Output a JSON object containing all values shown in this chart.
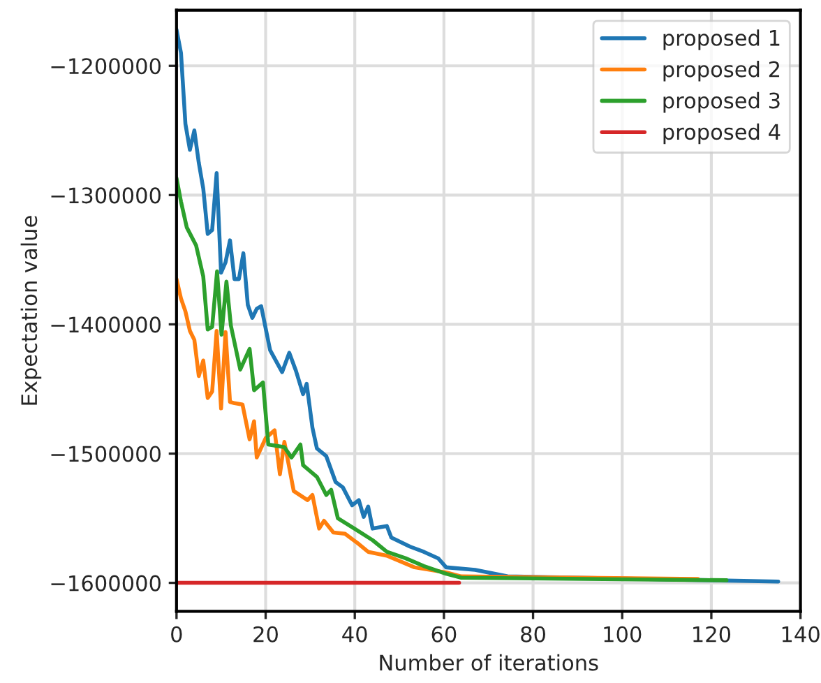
{
  "chart_data": {
    "type": "line",
    "xlabel": "Number of iterations",
    "ylabel": "Expectation value",
    "xlim": [
      0,
      140
    ],
    "ylim": [
      -1622000,
      -1157000
    ],
    "xticks": [
      0,
      20,
      40,
      60,
      80,
      100,
      120,
      140
    ],
    "yticks": [
      {
        "value": -1600000,
        "label": "−1600000"
      },
      {
        "value": -1500000,
        "label": "−1500000"
      },
      {
        "value": -1400000,
        "label": "−1400000"
      },
      {
        "value": -1300000,
        "label": "−1300000"
      },
      {
        "value": -1200000,
        "label": "−1200000"
      }
    ],
    "grid": true,
    "legend": "top right",
    "line_style": "solid",
    "series": [
      {
        "name": "proposed 1",
        "color": "#1f77b4",
        "x": [
          0,
          1,
          2,
          3,
          4,
          5,
          6,
          7,
          8,
          9,
          10,
          11,
          12,
          13,
          14,
          15,
          16,
          17,
          18,
          19,
          21,
          23.7,
          25.3,
          26.8,
          28.4,
          29.2,
          30.5,
          31.5,
          33.6,
          35.7,
          37.3,
          39.4,
          40.9,
          42,
          43,
          44,
          47.2,
          48.2,
          52.4,
          55.5,
          58.7,
          60.5,
          67,
          74.3,
          135
        ],
        "values": [
          -1172000,
          -1190000,
          -1245000,
          -1265000,
          -1250000,
          -1275000,
          -1295000,
          -1330000,
          -1327000,
          -1283000,
          -1360000,
          -1352000,
          -1335000,
          -1365000,
          -1365000,
          -1345000,
          -1385000,
          -1395000,
          -1388000,
          -1386000,
          -1420000,
          -1437000,
          -1422000,
          -1436000,
          -1454000,
          -1446000,
          -1480000,
          -1496000,
          -1502000,
          -1522000,
          -1526000,
          -1540000,
          -1536000,
          -1549000,
          -1541000,
          -1558000,
          -1556000,
          -1565000,
          -1572000,
          -1576000,
          -1581000,
          -1588000,
          -1590000,
          -1595000,
          -1599000
        ]
      },
      {
        "name": "proposed 2",
        "color": "#ff7f0e",
        "x": [
          0,
          1,
          2,
          3,
          4,
          5,
          6,
          7,
          8,
          9,
          10,
          11,
          12,
          13,
          14.8,
          16.4,
          17.4,
          18,
          20,
          22,
          23.2,
          24.2,
          26.3,
          29.4,
          30.5,
          32,
          33.1,
          35.2,
          37.8,
          40.9,
          43,
          47.2,
          53.4,
          60.5,
          63.9,
          117
        ],
        "values": [
          -1365000,
          -1380000,
          -1390000,
          -1405000,
          -1412000,
          -1440000,
          -1428000,
          -1457000,
          -1452000,
          -1405000,
          -1465000,
          -1406000,
          -1460000,
          -1461000,
          -1462000,
          -1489000,
          -1475000,
          -1503000,
          -1488000,
          -1482000,
          -1516000,
          -1491000,
          -1529000,
          -1536000,
          -1532000,
          -1558000,
          -1552000,
          -1561000,
          -1562000,
          -1570000,
          -1576000,
          -1579000,
          -1588000,
          -1592000,
          -1595000,
          -1597000
        ]
      },
      {
        "name": "proposed 3",
        "color": "#2ca02c",
        "x": [
          0,
          1,
          2.3,
          4.4,
          6,
          7,
          8,
          9.1,
          10.1,
          11.2,
          12.2,
          14.3,
          16.4,
          17.4,
          19.4,
          20.6,
          24.2,
          25.8,
          27.8,
          28.4,
          31.5,
          33.6,
          34.7,
          36.2,
          39.9,
          44,
          47.2,
          51.4,
          55.5,
          60.5,
          63.9,
          123.4
        ],
        "values": [
          -1287000,
          -1305000,
          -1325000,
          -1339000,
          -1363000,
          -1404000,
          -1402000,
          -1359000,
          -1408000,
          -1367000,
          -1401000,
          -1435000,
          -1419000,
          -1451000,
          -1445000,
          -1493000,
          -1495000,
          -1503000,
          -1493000,
          -1509000,
          -1518000,
          -1532000,
          -1528000,
          -1550000,
          -1558000,
          -1567000,
          -1576000,
          -1581000,
          -1587000,
          -1593000,
          -1596000,
          -1598000
        ]
      },
      {
        "name": "proposed 4",
        "color": "#d62728",
        "x": [
          0,
          63.4
        ],
        "values": [
          -1600000,
          -1600000
        ]
      }
    ]
  }
}
